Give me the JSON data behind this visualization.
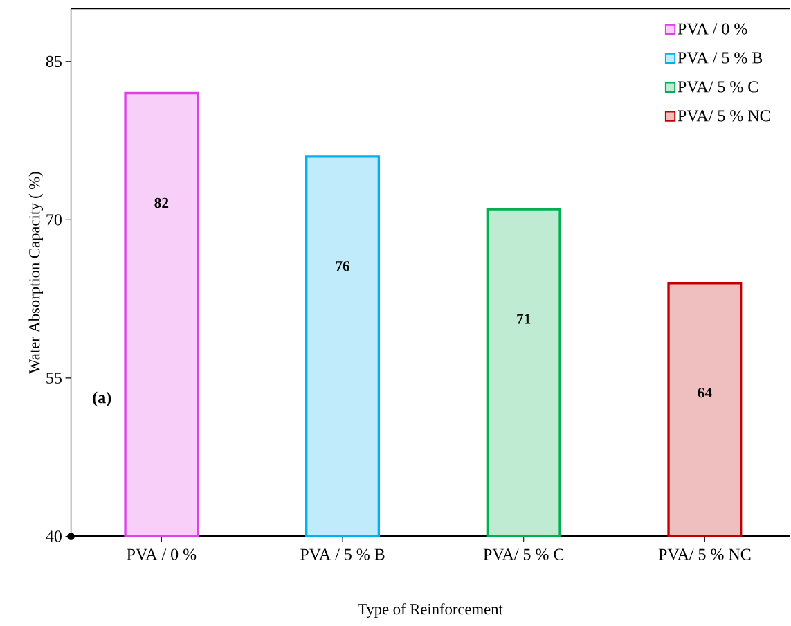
{
  "chart_data": {
    "type": "bar",
    "xlabel": "Type of Reinforcement",
    "ylabel": "Water  Absorption Capacity ( %)",
    "categories": [
      "PVA / 0 %",
      "PVA / 5 % B",
      "PVA/ 5 % C",
      "PVA/ 5 % NC"
    ],
    "series": [
      {
        "name": "PVA / 0 %",
        "color": "#e040e8",
        "values": [
          82,
          null,
          null,
          null
        ]
      },
      {
        "name": "PVA / 5 % B",
        "color": "#00b0f0",
        "values": [
          null,
          76,
          null,
          null
        ]
      },
      {
        "name": "PVA/ 5 % C",
        "color": "#00b050",
        "values": [
          null,
          null,
          71,
          null
        ]
      },
      {
        "name": "PVA/ 5 % NC",
        "color": "#c00000",
        "values": [
          null,
          null,
          null,
          64
        ]
      }
    ],
    "ylim": [
      40,
      90
    ],
    "yticks": [
      40,
      55,
      70,
      85
    ],
    "data_labels": true,
    "legend": "top right",
    "annotations": [
      "(a)"
    ]
  }
}
